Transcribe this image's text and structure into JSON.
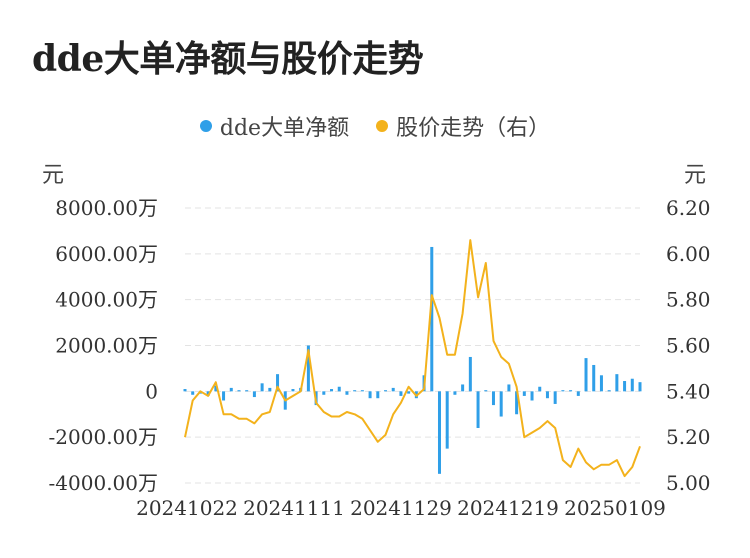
{
  "title": "dde大单净额与股价走势",
  "colors": {
    "bar": "#2f9fe8",
    "line": "#f3b21c",
    "grid": "#e3e3e3"
  },
  "chart_data": {
    "type": "bar+line",
    "legend": [
      {
        "name": "dde大单净额",
        "color": "#2f9fe8",
        "shape": "dot"
      },
      {
        "name": "股价走势（右）",
        "color": "#f3b21c",
        "shape": "dot"
      }
    ],
    "legend_position": "top-center",
    "left_unit": "元",
    "right_unit": "元",
    "left_ticks": [
      "8000.00万",
      "6000.00万",
      "4000.00万",
      "2000.00万",
      "0",
      "-2000.00万",
      "-4000.00万"
    ],
    "right_ticks": [
      "6.20",
      "6.00",
      "5.80",
      "5.60",
      "5.40",
      "5.20",
      "5.00"
    ],
    "ylim_left": [
      -4000,
      8000
    ],
    "ylim_right": [
      5.0,
      6.2
    ],
    "x_tick_labels": [
      "20241022",
      "20241111",
      "20241129",
      "20241219",
      "20250109"
    ],
    "grid": "horizontal dashed",
    "series": [
      {
        "name": "dde大单净额",
        "kind": "bar",
        "values": [
          100,
          -150,
          -100,
          -200,
          250,
          -400,
          150,
          50,
          50,
          -250,
          350,
          150,
          750,
          -800,
          100,
          150,
          2000,
          -600,
          -150,
          100,
          200,
          -150,
          50,
          50,
          -300,
          -300,
          50,
          150,
          -200,
          -100,
          -300,
          700,
          6300,
          -3600,
          -2500,
          -150,
          300,
          1500,
          -1600,
          50,
          -600,
          -1100,
          300,
          -1000,
          -200,
          -400,
          200,
          -300,
          -550,
          50,
          50,
          -200,
          1450,
          1150,
          700,
          50,
          750,
          450,
          550,
          400
        ],
        "unit": "万"
      },
      {
        "name": "股价走势（右）",
        "kind": "line",
        "axis": "right",
        "values": [
          5.2,
          5.36,
          5.4,
          5.38,
          5.44,
          5.3,
          5.3,
          5.28,
          5.28,
          5.26,
          5.3,
          5.31,
          5.42,
          5.36,
          5.38,
          5.4,
          5.58,
          5.35,
          5.31,
          5.29,
          5.29,
          5.31,
          5.3,
          5.28,
          5.23,
          5.18,
          5.21,
          5.3,
          5.35,
          5.42,
          5.38,
          5.41,
          5.82,
          5.72,
          5.56,
          5.56,
          5.74,
          6.06,
          5.81,
          5.96,
          5.62,
          5.55,
          5.52,
          5.42,
          5.2,
          5.22,
          5.24,
          5.27,
          5.24,
          5.1,
          5.07,
          5.15,
          5.09,
          5.06,
          5.08,
          5.08,
          5.1,
          5.03,
          5.07,
          5.16
        ]
      }
    ]
  }
}
